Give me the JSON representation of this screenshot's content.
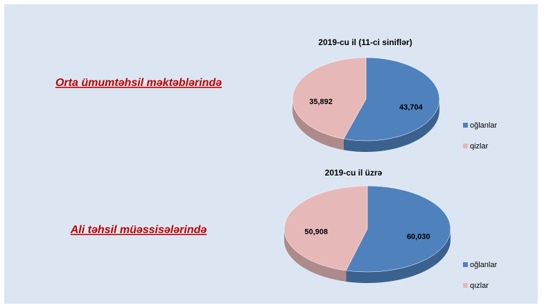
{
  "chart_data": [
    {
      "type": "pie",
      "title": "2019-cu il (11-ci  siniflər)",
      "caption": "Orta ümumtəhsil məktəblərində",
      "categories": [
        "oğlanlar",
        "qizlar"
      ],
      "values": [
        43704,
        35892
      ],
      "value_labels": [
        "43,704",
        "35,892"
      ],
      "colors": [
        "#4f81bd",
        "#e6b9b8"
      ],
      "legend": "right"
    },
    {
      "type": "pie",
      "title": "2019-cu il üzrə",
      "caption": "Ali təhsil müəssisələrində",
      "categories": [
        "oğlanlar",
        "qızlar"
      ],
      "values": [
        60030,
        50908
      ],
      "value_labels": [
        "60,030",
        "50,908"
      ],
      "colors": [
        "#4f81bd",
        "#e6b9b8"
      ],
      "legend": "right"
    }
  ]
}
